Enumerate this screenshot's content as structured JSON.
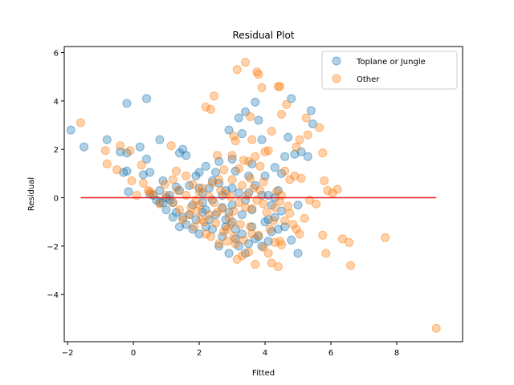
{
  "chart_data": {
    "type": "scatter",
    "title": "Residual Plot",
    "xlabel": "Fitted",
    "ylabel": "Residual",
    "xlim": [
      -2.1,
      10.0
    ],
    "ylim": [
      -5.95,
      6.25
    ],
    "xticks": [
      -2,
      0,
      2,
      4,
      6,
      8
    ],
    "yticks": [
      -4,
      -2,
      0,
      2,
      4,
      6
    ],
    "xtick_labels": [
      "−2",
      "0",
      "2",
      "4",
      "6",
      "8"
    ],
    "ytick_labels": [
      "−4",
      "−2",
      "0",
      "2",
      "4",
      "6"
    ],
    "grid": false,
    "legend_position": "top-right",
    "reference_line": {
      "y": 0,
      "x_range": [
        -1.6,
        9.2
      ],
      "color": "#e8141b"
    },
    "series": [
      {
        "name": "Toplane or Jungle",
        "color": "#1f77b4",
        "alpha": 0.35,
        "points": [
          [
            -0.2,
            3.9
          ],
          [
            0.4,
            4.1
          ],
          [
            -1.9,
            2.8
          ],
          [
            -1.5,
            2.1
          ],
          [
            -0.8,
            2.4
          ],
          [
            -0.4,
            1.9
          ],
          [
            -0.2,
            1.85
          ],
          [
            0.2,
            2.1
          ],
          [
            0.8,
            2.4
          ],
          [
            0.4,
            1.6
          ],
          [
            -0.3,
            1.05
          ],
          [
            -0.2,
            1.1
          ],
          [
            0.5,
            1.05
          ],
          [
            0.3,
            0.95
          ],
          [
            -0.15,
            0.25
          ],
          [
            0.5,
            0.15
          ],
          [
            0.6,
            0.1
          ],
          [
            0.8,
            0.3
          ],
          [
            0.9,
            0.7
          ],
          [
            1.0,
            0.0
          ],
          [
            1.1,
            -0.1
          ],
          [
            1.2,
            -0.2
          ],
          [
            1.3,
            0.45
          ],
          [
            1.4,
            1.85
          ],
          [
            1.5,
            2.0
          ],
          [
            1.6,
            1.75
          ],
          [
            1.5,
            -0.8
          ],
          [
            1.7,
            0.5
          ],
          [
            1.8,
            -0.3
          ],
          [
            1.9,
            0.9
          ],
          [
            2.0,
            1.05
          ],
          [
            2.1,
            0.2
          ],
          [
            2.2,
            -0.5
          ],
          [
            2.3,
            0.4
          ],
          [
            2.4,
            0.7
          ],
          [
            2.5,
            1.05
          ],
          [
            2.6,
            1.5
          ],
          [
            2.7,
            0.1
          ],
          [
            2.8,
            0.3
          ],
          [
            2.9,
            2.8
          ],
          [
            3.0,
            1.6
          ],
          [
            3.1,
            1.1
          ],
          [
            3.2,
            3.3
          ],
          [
            3.3,
            2.65
          ],
          [
            3.4,
            3.55
          ],
          [
            3.5,
            0.9
          ],
          [
            3.6,
            1.4
          ],
          [
            3.7,
            3.95
          ],
          [
            3.8,
            3.2
          ],
          [
            3.9,
            2.4
          ],
          [
            4.0,
            0.9
          ],
          [
            4.1,
            0.1
          ],
          [
            4.2,
            -0.3
          ],
          [
            4.3,
            1.25
          ],
          [
            4.4,
            0.3
          ],
          [
            4.5,
            1.0
          ],
          [
            4.6,
            1.7
          ],
          [
            4.7,
            2.5
          ],
          [
            4.8,
            4.1
          ],
          [
            4.9,
            1.8
          ],
          [
            5.0,
            -0.3
          ],
          [
            5.1,
            1.9
          ],
          [
            5.3,
            1.7
          ],
          [
            5.4,
            3.6
          ],
          [
            5.45,
            3.05
          ],
          [
            5.0,
            -2.3
          ],
          [
            4.8,
            -1.75
          ],
          [
            4.6,
            -1.2
          ],
          [
            4.5,
            -0.55
          ],
          [
            4.3,
            -0.8
          ],
          [
            4.2,
            -1.4
          ],
          [
            4.0,
            -1.0
          ],
          [
            3.8,
            -1.6
          ],
          [
            3.6,
            -1.2
          ],
          [
            3.5,
            -1.9
          ],
          [
            3.4,
            -2.3
          ],
          [
            3.3,
            -1.5
          ],
          [
            3.1,
            -1.7
          ],
          [
            3.0,
            -1.0
          ],
          [
            2.9,
            -2.3
          ],
          [
            2.8,
            -1.2
          ],
          [
            2.7,
            -1.6
          ],
          [
            2.6,
            -2.0
          ],
          [
            2.5,
            -0.7
          ],
          [
            2.4,
            -1.3
          ],
          [
            2.3,
            -0.9
          ],
          [
            2.2,
            -1.2
          ],
          [
            2.1,
            -0.6
          ],
          [
            2.0,
            -1.5
          ],
          [
            1.9,
            -0.9
          ],
          [
            1.8,
            -1.3
          ],
          [
            1.7,
            -0.7
          ],
          [
            1.6,
            -1.1
          ],
          [
            1.4,
            -1.2
          ],
          [
            1.3,
            -0.6
          ],
          [
            1.2,
            -0.8
          ],
          [
            1.0,
            -0.5
          ],
          [
            0.9,
            -0.2
          ],
          [
            0.7,
            -0.1
          ],
          [
            2.0,
            0.4
          ],
          [
            2.1,
            -0.2
          ],
          [
            2.4,
            -0.1
          ],
          [
            2.6,
            0.6
          ],
          [
            2.7,
            -0.4
          ],
          [
            2.9,
            -0.6
          ],
          [
            3.0,
            -0.3
          ],
          [
            3.2,
            0.2
          ],
          [
            3.3,
            -0.7
          ],
          [
            3.4,
            -0.1
          ],
          [
            3.6,
            -0.5
          ],
          [
            3.7,
            0.5
          ],
          [
            3.9,
            0.1
          ],
          [
            4.1,
            -0.9
          ],
          [
            4.3,
            0.0
          ],
          [
            3.5,
            0.2
          ],
          [
            3.0,
            0.4
          ],
          [
            2.2,
            1.3
          ],
          [
            1.4,
            0.3
          ],
          [
            1.1,
            0.1
          ],
          [
            0.8,
            -0.2
          ],
          [
            2.8,
            -0.9
          ],
          [
            3.1,
            -1.3
          ],
          [
            3.7,
            -1.7
          ],
          [
            3.9,
            -2.0
          ],
          [
            4.1,
            -1.8
          ],
          [
            4.4,
            -1.3
          ],
          [
            3.2,
            -2.0
          ]
        ]
      },
      {
        "name": "Other",
        "color": "#ff7f0e",
        "alpha": 0.35,
        "points": [
          [
            -1.6,
            3.1
          ],
          [
            3.4,
            5.6
          ],
          [
            3.15,
            5.3
          ],
          [
            3.75,
            5.2
          ],
          [
            3.8,
            5.1
          ],
          [
            3.9,
            4.55
          ],
          [
            4.4,
            4.6
          ],
          [
            4.45,
            4.6
          ],
          [
            4.65,
            3.85
          ],
          [
            2.45,
            4.2
          ],
          [
            2.2,
            3.75
          ],
          [
            2.35,
            3.65
          ],
          [
            3.55,
            3.35
          ],
          [
            4.5,
            3.45
          ],
          [
            5.25,
            3.3
          ],
          [
            5.3,
            2.6
          ],
          [
            4.2,
            2.75
          ],
          [
            3.05,
            2.55
          ],
          [
            3.1,
            2.35
          ],
          [
            3.6,
            2.4
          ],
          [
            4.1,
            1.95
          ],
          [
            4.95,
            2.1
          ],
          [
            5.05,
            2.4
          ],
          [
            5.65,
            2.9
          ],
          [
            5.75,
            1.85
          ],
          [
            5.8,
            0.7
          ],
          [
            5.9,
            0.3
          ],
          [
            6.2,
            0.35
          ],
          [
            5.35,
            -0.1
          ],
          [
            5.55,
            -0.25
          ],
          [
            -0.85,
            1.95
          ],
          [
            -0.8,
            1.4
          ],
          [
            -0.5,
            1.15
          ],
          [
            -0.4,
            2.15
          ],
          [
            -0.1,
            1.95
          ],
          [
            0.25,
            1.35
          ],
          [
            0.3,
            0.6
          ],
          [
            0.1,
            0.1
          ],
          [
            0.5,
            0.25
          ],
          [
            -0.05,
            0.7
          ],
          [
            1.15,
            2.15
          ],
          [
            1.2,
            0.75
          ],
          [
            1.3,
            1.1
          ],
          [
            0.95,
            0.55
          ],
          [
            2.55,
            1.75
          ],
          [
            2.6,
            0.75
          ],
          [
            3.0,
            1.75
          ],
          [
            3.5,
            1.5
          ],
          [
            3.35,
            1.55
          ],
          [
            4.0,
            1.9
          ],
          [
            3.7,
            1.7
          ],
          [
            3.85,
            1.3
          ],
          [
            3.95,
            0.65
          ],
          [
            4.6,
            1.1
          ],
          [
            4.9,
            0.9
          ],
          [
            4.75,
            0.75
          ],
          [
            5.1,
            0.8
          ],
          [
            6.05,
            0.2
          ],
          [
            1.6,
            0.9
          ],
          [
            1.8,
            0.55
          ],
          [
            2.0,
            0.25
          ],
          [
            2.3,
            0.05
          ],
          [
            2.45,
            -0.2
          ],
          [
            2.7,
            -0.45
          ],
          [
            2.8,
            0.15
          ],
          [
            2.95,
            0.05
          ],
          [
            3.2,
            -0.2
          ],
          [
            3.3,
            0.5
          ],
          [
            3.45,
            0.1
          ],
          [
            3.6,
            -0.45
          ],
          [
            3.75,
            -0.1
          ],
          [
            3.85,
            0.3
          ],
          [
            4.05,
            -0.6
          ],
          [
            4.3,
            -0.4
          ],
          [
            4.45,
            -0.15
          ],
          [
            4.6,
            -0.95
          ],
          [
            4.75,
            -0.65
          ],
          [
            4.85,
            -1.1
          ],
          [
            4.95,
            -1.3
          ],
          [
            5.05,
            -1.5
          ],
          [
            5.2,
            -0.85
          ],
          [
            5.75,
            -1.55
          ],
          [
            5.85,
            -2.3
          ],
          [
            6.35,
            -1.7
          ],
          [
            6.55,
            -1.85
          ],
          [
            6.6,
            -2.8
          ],
          [
            7.65,
            -1.65
          ],
          [
            9.2,
            -5.4
          ],
          [
            1.2,
            -0.2
          ],
          [
            1.4,
            -0.5
          ],
          [
            1.5,
            -0.9
          ],
          [
            1.7,
            -0.7
          ],
          [
            1.85,
            -1.2
          ],
          [
            2.05,
            -0.9
          ],
          [
            2.2,
            -1.5
          ],
          [
            2.35,
            -1.6
          ],
          [
            2.5,
            -1.05
          ],
          [
            2.6,
            -1.9
          ],
          [
            2.75,
            -1.4
          ],
          [
            2.85,
            -1.8
          ],
          [
            2.95,
            -1.1
          ],
          [
            3.05,
            -1.6
          ],
          [
            3.15,
            -2.55
          ],
          [
            3.35,
            -1.75
          ],
          [
            3.5,
            -2.25
          ],
          [
            3.7,
            -2.75
          ],
          [
            3.8,
            -1.55
          ],
          [
            3.95,
            -2.05
          ],
          [
            4.1,
            -2.3
          ],
          [
            4.2,
            -2.7
          ],
          [
            4.3,
            -1.85
          ],
          [
            4.25,
            -0.95
          ],
          [
            4.45,
            -1.8
          ],
          [
            4.4,
            -2.85
          ],
          [
            4.5,
            -1.95
          ],
          [
            2.3,
            -0.7
          ],
          [
            2.55,
            -0.6
          ],
          [
            2.65,
            0.3
          ],
          [
            2.9,
            -0.8
          ],
          [
            3.05,
            -0.55
          ],
          [
            3.25,
            -1.1
          ],
          [
            3.4,
            -0.4
          ],
          [
            3.55,
            -1.2
          ],
          [
            3.65,
            0.4
          ],
          [
            3.95,
            -0.25
          ],
          [
            4.15,
            -1.3
          ],
          [
            4.35,
            0.25
          ],
          [
            1.6,
            0.1
          ],
          [
            1.9,
            -0.1
          ],
          [
            2.1,
            0.4
          ],
          [
            1.0,
            0.1
          ],
          [
            0.8,
            -0.25
          ],
          [
            0.6,
            0.15
          ],
          [
            0.45,
            0.3
          ],
          [
            2.4,
            0.6
          ],
          [
            2.0,
            -0.3
          ],
          [
            1.75,
            -0.4
          ],
          [
            1.35,
            0.3
          ],
          [
            3.55,
            0.8
          ],
          [
            3.0,
            0.75
          ],
          [
            2.75,
            1.15
          ],
          [
            3.2,
            1.2
          ],
          [
            4.5,
            0.1
          ],
          [
            4.7,
            -0.35
          ],
          [
            2.15,
            -1.0
          ],
          [
            1.95,
            -0.55
          ],
          [
            2.85,
            -1.3
          ],
          [
            3.1,
            -1.9
          ],
          [
            3.3,
            -2.4
          ],
          [
            3.6,
            -1.5
          ]
        ]
      }
    ]
  }
}
